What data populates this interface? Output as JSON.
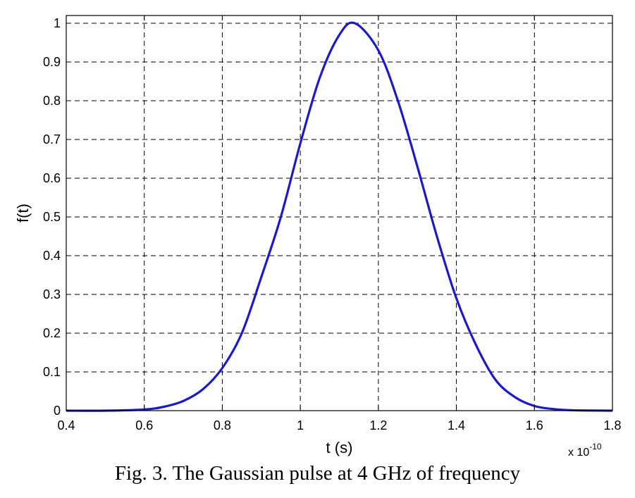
{
  "caption": "Fig. 3. The Gaussian pulse at 4 GHz of frequency",
  "chart_data": {
    "type": "line",
    "title": "",
    "xlabel": "t (s)",
    "ylabel": "f(t)",
    "x_multiplier_base": "x 10",
    "x_multiplier_exponent": "-10",
    "xlim": [
      4e-11,
      1.8e-10
    ],
    "ylim": [
      0,
      1.02
    ],
    "xticks": [
      0.4,
      0.6,
      0.8,
      1,
      1.2,
      1.4,
      1.6,
      1.8
    ],
    "xtick_labels": [
      "0.4",
      "0.6",
      "0.8",
      "1",
      "1.2",
      "1.4",
      "1.6",
      "1.8"
    ],
    "yticks": [
      0,
      0.1,
      0.2,
      0.3,
      0.4,
      0.5,
      0.6,
      0.7,
      0.8,
      0.9,
      1
    ],
    "ytick_labels": [
      "0",
      "0.1",
      "0.2",
      "0.3",
      "0.4",
      "0.5",
      "0.6",
      "0.7",
      "0.8",
      "0.9",
      "1"
    ],
    "grid": true,
    "legend": "none",
    "series": [
      {
        "color": "#1a1acc",
        "x": [
          4e-11,
          5e-11,
          6e-11,
          6.5e-11,
          7e-11,
          7.5e-11,
          8e-11,
          8.5e-11,
          9e-11,
          9.5e-11,
          1e-10,
          1.05e-10,
          1.1e-10,
          1.14e-10,
          1.2e-10,
          1.25e-10,
          1.3e-10,
          1.35e-10,
          1.4e-10,
          1.45e-10,
          1.5e-10,
          1.55e-10,
          1.6e-10,
          1.65e-10,
          1.7e-10,
          1.8e-10
        ],
        "y": [
          0,
          0,
          0.003,
          0.01,
          0.025,
          0.055,
          0.11,
          0.2,
          0.345,
          0.5,
          0.69,
          0.86,
          0.97,
          1.0,
          0.93,
          0.8,
          0.63,
          0.45,
          0.29,
          0.17,
          0.08,
          0.035,
          0.012,
          0.004,
          0.001,
          0
        ]
      }
    ]
  }
}
